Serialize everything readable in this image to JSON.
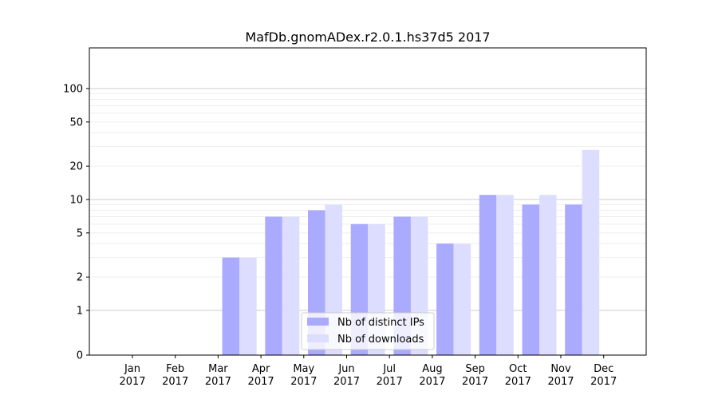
{
  "chart_data": {
    "type": "bar",
    "title": "MafDb.gnomADex.r2.0.1.hs37d5 2017",
    "xlabel": "",
    "ylabel": "",
    "scale": "symlog",
    "categories": [
      [
        "Jan",
        "2017"
      ],
      [
        "Feb",
        "2017"
      ],
      [
        "Mar",
        "2017"
      ],
      [
        "Apr",
        "2017"
      ],
      [
        "May",
        "2017"
      ],
      [
        "Jun",
        "2017"
      ],
      [
        "Jul",
        "2017"
      ],
      [
        "Aug",
        "2017"
      ],
      [
        "Sep",
        "2017"
      ],
      [
        "Oct",
        "2017"
      ],
      [
        "Nov",
        "2017"
      ],
      [
        "Dec",
        "2017"
      ]
    ],
    "series": [
      {
        "name": "Nb of distinct IPs",
        "color": "#aaaaff",
        "values": [
          0,
          0,
          0,
          3,
          7,
          8,
          6,
          7,
          4,
          11,
          9,
          9
        ]
      },
      {
        "name": "Nb of downloads",
        "color": "#ddddff",
        "values": [
          0,
          0,
          0,
          3,
          7,
          9,
          6,
          7,
          4,
          11,
          11,
          28
        ]
      }
    ],
    "y_ticks": [
      0,
      1,
      2,
      5,
      10,
      20,
      50,
      100
    ],
    "ylim": [
      0,
      120
    ],
    "grid": true,
    "legend_position": "lower-center"
  }
}
